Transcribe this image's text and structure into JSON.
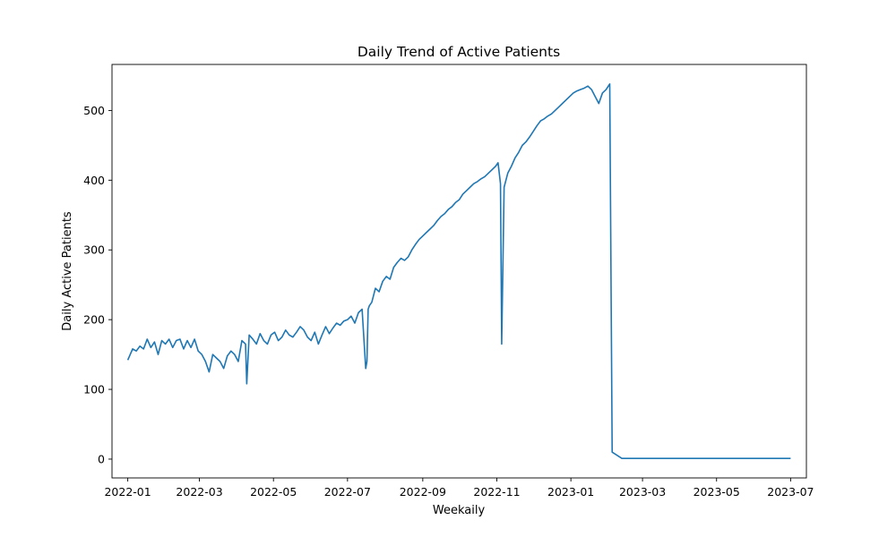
{
  "chart_data": {
    "type": "line",
    "title": "Daily Trend of Active Patients",
    "xlabel": "Weekaily",
    "ylabel": "Daily Active Patients",
    "xlim": [
      "2021-12-19",
      "2023-07-14"
    ],
    "ylim": [
      -27,
      566
    ],
    "xticks": [
      "2022-01",
      "2022-03",
      "2022-05",
      "2022-07",
      "2022-09",
      "2022-11",
      "2023-01",
      "2023-03",
      "2023-05",
      "2023-07"
    ],
    "yticks": [
      0,
      100,
      200,
      300,
      400,
      500
    ],
    "grid": false,
    "series": [
      {
        "color": "#1f77b4",
        "x": [
          "2022-01-01",
          "2022-01-03",
          "2022-01-05",
          "2022-01-08",
          "2022-01-11",
          "2022-01-14",
          "2022-01-17",
          "2022-01-20",
          "2022-01-23",
          "2022-01-26",
          "2022-01-29",
          "2022-02-01",
          "2022-02-04",
          "2022-02-07",
          "2022-02-10",
          "2022-02-13",
          "2022-02-16",
          "2022-02-19",
          "2022-02-22",
          "2022-02-25",
          "2022-02-28",
          "2022-03-03",
          "2022-03-06",
          "2022-03-09",
          "2022-03-12",
          "2022-03-15",
          "2022-03-18",
          "2022-03-21",
          "2022-03-24",
          "2022-03-27",
          "2022-03-30",
          "2022-04-02",
          "2022-04-05",
          "2022-04-08",
          "2022-04-09",
          "2022-04-11",
          "2022-04-14",
          "2022-04-17",
          "2022-04-20",
          "2022-04-23",
          "2022-04-26",
          "2022-04-29",
          "2022-05-02",
          "2022-05-05",
          "2022-05-08",
          "2022-05-11",
          "2022-05-14",
          "2022-05-17",
          "2022-05-20",
          "2022-05-23",
          "2022-05-26",
          "2022-05-29",
          "2022-06-01",
          "2022-06-04",
          "2022-06-07",
          "2022-06-10",
          "2022-06-13",
          "2022-06-16",
          "2022-06-19",
          "2022-06-22",
          "2022-06-25",
          "2022-06-28",
          "2022-07-01",
          "2022-07-04",
          "2022-07-07",
          "2022-07-10",
          "2022-07-13",
          "2022-07-16",
          "2022-07-17",
          "2022-07-18",
          "2022-07-19",
          "2022-07-21",
          "2022-07-24",
          "2022-07-27",
          "2022-07-30",
          "2022-08-02",
          "2022-08-05",
          "2022-08-08",
          "2022-08-11",
          "2022-08-14",
          "2022-08-17",
          "2022-08-20",
          "2022-08-23",
          "2022-08-26",
          "2022-08-29",
          "2022-09-01",
          "2022-09-04",
          "2022-09-07",
          "2022-09-10",
          "2022-09-13",
          "2022-09-16",
          "2022-09-19",
          "2022-09-22",
          "2022-09-25",
          "2022-09-28",
          "2022-10-01",
          "2022-10-04",
          "2022-10-07",
          "2022-10-10",
          "2022-10-13",
          "2022-10-16",
          "2022-10-19",
          "2022-10-22",
          "2022-10-25",
          "2022-10-28",
          "2022-10-31",
          "2022-11-02",
          "2022-11-04",
          "2022-11-05",
          "2022-11-07",
          "2022-11-10",
          "2022-11-13",
          "2022-11-16",
          "2022-11-19",
          "2022-11-22",
          "2022-11-25",
          "2022-11-28",
          "2022-12-01",
          "2022-12-04",
          "2022-12-07",
          "2022-12-10",
          "2022-12-13",
          "2022-12-16",
          "2022-12-19",
          "2022-12-22",
          "2022-12-25",
          "2022-12-28",
          "2022-12-31",
          "2023-01-03",
          "2023-01-06",
          "2023-01-09",
          "2023-01-12",
          "2023-01-15",
          "2023-01-18",
          "2023-01-21",
          "2023-01-24",
          "2023-01-27",
          "2023-01-30",
          "2023-02-02",
          "2023-02-04",
          "2023-02-12",
          "2023-07-01"
        ],
        "y": [
          142,
          150,
          158,
          155,
          162,
          158,
          172,
          160,
          168,
          150,
          170,
          165,
          172,
          160,
          170,
          172,
          158,
          170,
          160,
          172,
          155,
          150,
          140,
          125,
          150,
          145,
          140,
          130,
          148,
          155,
          150,
          140,
          170,
          165,
          108,
          178,
          172,
          165,
          180,
          170,
          165,
          178,
          182,
          170,
          175,
          185,
          178,
          175,
          182,
          190,
          185,
          175,
          170,
          182,
          165,
          178,
          190,
          180,
          188,
          195,
          192,
          198,
          200,
          205,
          195,
          210,
          215,
          130,
          140,
          215,
          220,
          225,
          245,
          240,
          255,
          262,
          258,
          275,
          282,
          288,
          285,
          290,
          300,
          308,
          315,
          320,
          325,
          330,
          335,
          342,
          348,
          352,
          358,
          362,
          368,
          372,
          380,
          385,
          390,
          395,
          398,
          402,
          405,
          410,
          415,
          420,
          425,
          395,
          165,
          390,
          410,
          420,
          432,
          440,
          450,
          455,
          462,
          470,
          478,
          485,
          488,
          492,
          495,
          500,
          505,
          510,
          515,
          520,
          525,
          528,
          530,
          532,
          535,
          530,
          520,
          510,
          525,
          530,
          538,
          10,
          1,
          1
        ]
      }
    ]
  }
}
